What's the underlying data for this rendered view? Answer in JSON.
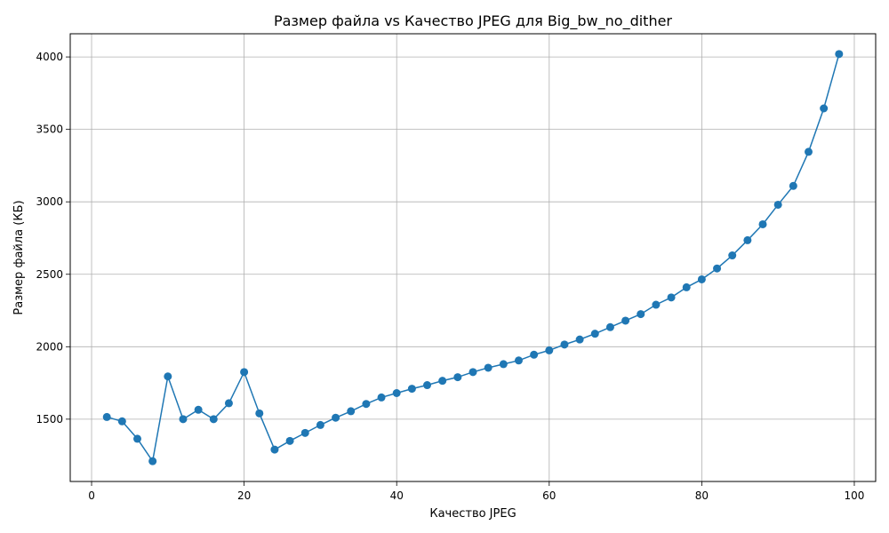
{
  "chart_data": {
    "type": "line",
    "title": "Размер файла vs Качество JPEG для Big_bw_no_dither",
    "xlabel": "Качество JPEG",
    "ylabel": "Размер файла (КБ)",
    "xlim": [
      -2.8,
      102.8
    ],
    "ylim": [
      1070,
      4160
    ],
    "xticks": [
      0,
      20,
      40,
      60,
      80,
      100
    ],
    "yticks": [
      1500,
      2000,
      2500,
      3000,
      3500,
      4000
    ],
    "grid": true,
    "marker": "circle",
    "color": "#1f77b4",
    "series": [
      {
        "x": [
          2,
          4,
          6,
          8,
          10,
          12,
          14,
          16,
          18,
          20,
          22,
          24,
          26,
          28,
          30,
          32,
          34,
          36,
          38,
          40,
          42,
          44,
          46,
          48,
          50,
          52,
          54,
          56,
          58,
          60,
          62,
          64,
          66,
          68,
          70,
          72,
          74,
          76,
          78,
          80,
          82,
          84,
          86,
          88,
          90,
          92,
          94,
          96,
          98
        ],
        "y": [
          1515,
          1485,
          1365,
          1210,
          1795,
          1500,
          1565,
          1500,
          1610,
          1825,
          1540,
          1290,
          1350,
          1405,
          1460,
          1510,
          1555,
          1605,
          1650,
          1680,
          1710,
          1735,
          1765,
          1790,
          1825,
          1855,
          1880,
          1905,
          1945,
          1975,
          2015,
          2050,
          2090,
          2135,
          2180,
          2225,
          2290,
          2340,
          2410,
          2465,
          2540,
          2630,
          2735,
          2845,
          2980,
          3110,
          3345,
          3645,
          4020
        ]
      }
    ]
  }
}
